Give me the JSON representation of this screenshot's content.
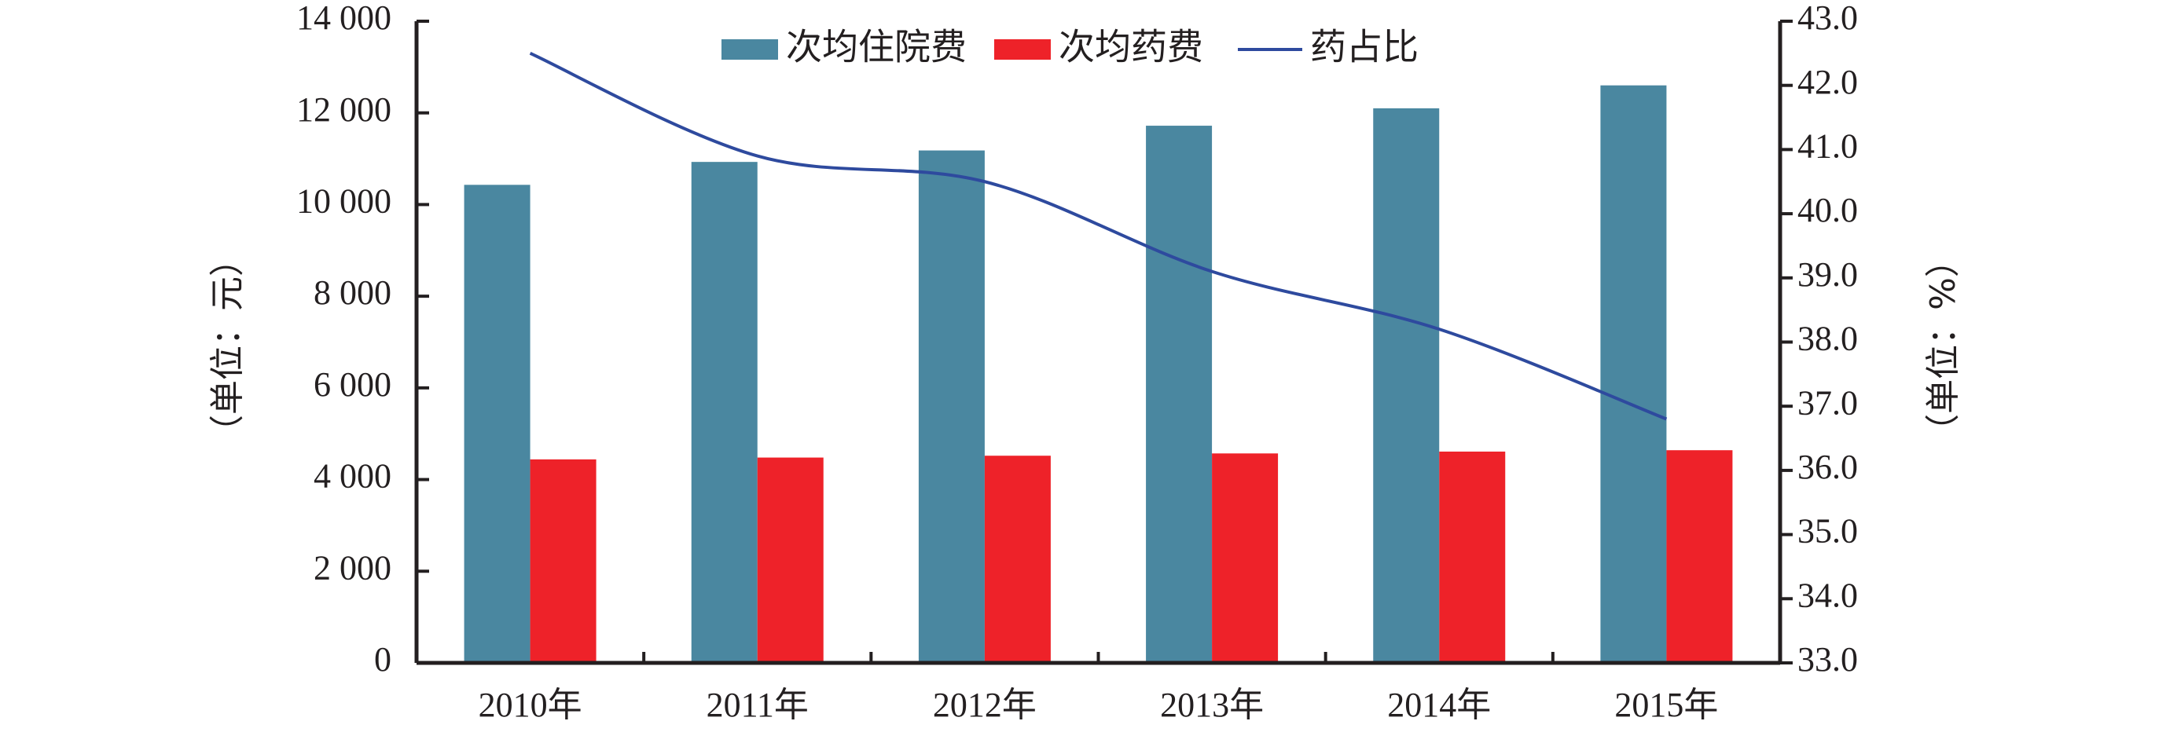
{
  "chart_data": {
    "type": "bar",
    "categories": [
      "2010年",
      "2011年",
      "2012年",
      "2013年",
      "2014年",
      "2015年"
    ],
    "series": [
      {
        "name": "次均住院费",
        "kind": "bar",
        "axis": "left",
        "color": "#4a87a0",
        "values": [
          10430,
          10930,
          11180,
          11720,
          12100,
          12600
        ]
      },
      {
        "name": "次均药费",
        "kind": "bar",
        "axis": "left",
        "color": "#ee2229",
        "values": [
          4440,
          4480,
          4520,
          4570,
          4610,
          4640
        ]
      },
      {
        "name": "药占比",
        "kind": "line",
        "axis": "right",
        "color": "#2e4a9e",
        "values": [
          42.5,
          40.9,
          40.5,
          39.1,
          38.2,
          36.8
        ]
      }
    ],
    "ylabel": "（单位：元）",
    "y2label": "（单位：%）",
    "ylim": [
      0,
      14000
    ],
    "y2lim": [
      33.0,
      43.0
    ],
    "yticks": [
      "0",
      "2 000",
      "4 000",
      "6 000",
      "8 000",
      "10 000",
      "12 000",
      "14 000"
    ],
    "y2ticks": [
      "33.0",
      "34.0",
      "35.0",
      "36.0",
      "37.0",
      "38.0",
      "39.0",
      "40.0",
      "41.0",
      "42.0",
      "43.0"
    ],
    "legend": {
      "position": "top-center"
    },
    "grid": false
  }
}
